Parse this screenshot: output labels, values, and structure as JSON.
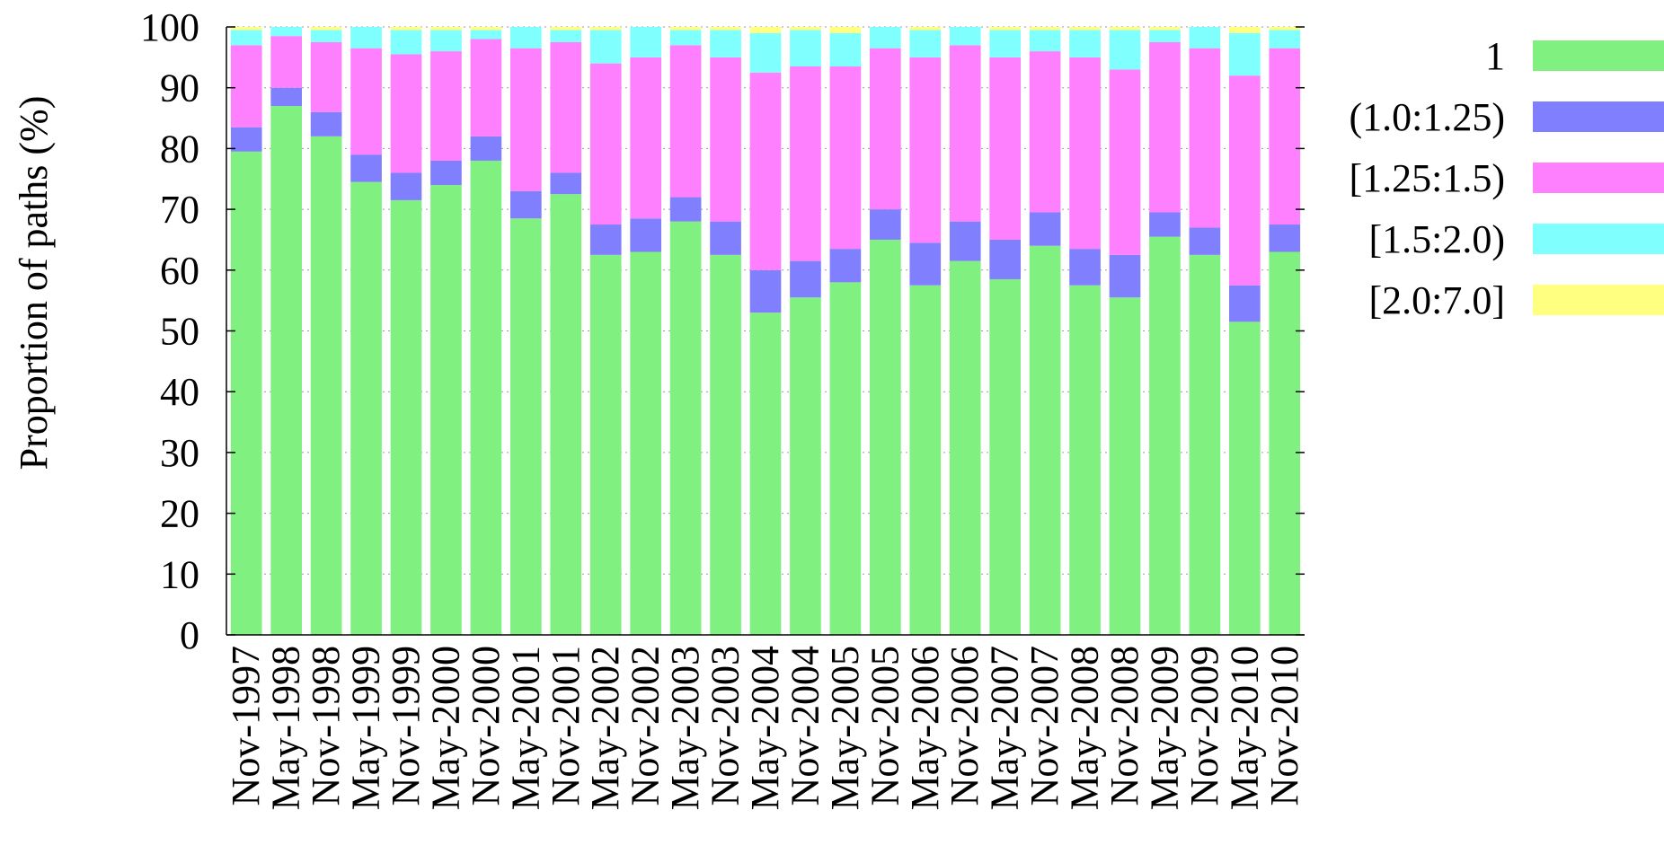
{
  "chart_data": {
    "type": "bar",
    "stacked": true,
    "ylabel": "Proportion of paths (%)",
    "ylim": [
      0,
      100
    ],
    "yticks": [
      0,
      10,
      20,
      30,
      40,
      50,
      60,
      70,
      80,
      90,
      100
    ],
    "grid": true,
    "legend_position": "top-right",
    "categories": [
      "Nov-1997",
      "May-1998",
      "Nov-1998",
      "May-1999",
      "Nov-1999",
      "May-2000",
      "Nov-2000",
      "May-2001",
      "Nov-2001",
      "May-2002",
      "Nov-2002",
      "May-2003",
      "Nov-2003",
      "May-2004",
      "Nov-2004",
      "May-2005",
      "Nov-2005",
      "May-2006",
      "Nov-2006",
      "May-2007",
      "Nov-2007",
      "May-2008",
      "Nov-2008",
      "May-2009",
      "Nov-2009",
      "May-2010",
      "Nov-2010"
    ],
    "series": [
      {
        "name": "1",
        "color": "#80f080",
        "values": [
          79.5,
          87.0,
          82.0,
          74.5,
          71.5,
          74.0,
          78.0,
          68.5,
          72.5,
          62.5,
          63.0,
          68.0,
          62.5,
          53.0,
          55.5,
          58.0,
          65.0,
          57.5,
          61.5,
          58.5,
          64.0,
          57.5,
          55.5,
          65.5,
          62.5,
          51.5,
          63.0
        ]
      },
      {
        "name": "(1.0:1.25)",
        "color": "#8080ff",
        "values": [
          4.0,
          3.0,
          4.0,
          4.5,
          4.5,
          4.0,
          4.0,
          4.5,
          3.5,
          5.0,
          5.5,
          4.0,
          5.5,
          7.0,
          6.0,
          5.5,
          5.0,
          7.0,
          6.5,
          6.5,
          5.5,
          6.0,
          7.0,
          4.0,
          4.5,
          6.0,
          4.5
        ]
      },
      {
        "name": "[1.25:1.5)",
        "color": "#ff80ff",
        "values": [
          13.5,
          8.5,
          11.5,
          17.5,
          19.5,
          18.0,
          16.0,
          23.5,
          21.5,
          26.5,
          26.5,
          25.0,
          27.0,
          32.5,
          32.0,
          30.0,
          26.5,
          30.5,
          29.0,
          30.0,
          26.5,
          31.5,
          30.5,
          28.0,
          29.5,
          34.5,
          29.0
        ]
      },
      {
        "name": "[1.5:2.0)",
        "color": "#80ffff",
        "values": [
          2.5,
          1.5,
          2.0,
          3.5,
          4.0,
          3.5,
          1.5,
          3.5,
          2.0,
          5.5,
          5.0,
          2.5,
          4.5,
          6.5,
          6.0,
          5.5,
          3.5,
          4.5,
          3.0,
          4.5,
          3.5,
          4.5,
          6.5,
          2.0,
          3.5,
          7.0,
          3.0
        ]
      },
      {
        "name": "[2.0:7.0]",
        "color": "#ffff80",
        "values": [
          0.5,
          0.0,
          0.5,
          0.0,
          0.5,
          0.5,
          0.5,
          0.0,
          0.5,
          0.5,
          0.0,
          0.5,
          0.5,
          1.0,
          0.5,
          1.0,
          0.0,
          0.5,
          0.0,
          0.5,
          0.5,
          0.5,
          0.5,
          0.5,
          0.0,
          1.0,
          0.5
        ]
      }
    ]
  }
}
